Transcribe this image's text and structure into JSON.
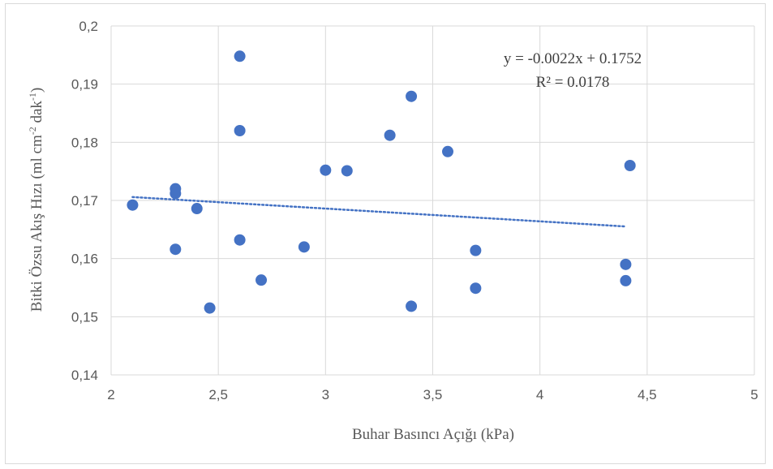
{
  "chart_data": {
    "type": "scatter",
    "xlabel": "Buhar Basıncı Açığı (kPa)",
    "ylabel_parts": [
      "Bitki Özsu Akış Hızı (ml cm",
      "-2",
      " dak",
      "-1",
      ")"
    ],
    "xlim": [
      2,
      5
    ],
    "ylim": [
      0.14,
      0.2
    ],
    "x_ticks": [
      2,
      2.5,
      3,
      3.5,
      4,
      4.5,
      5
    ],
    "x_tick_labels": [
      "2",
      "2,5",
      "3",
      "3,5",
      "4",
      "4,5",
      "5"
    ],
    "y_ticks": [
      0.14,
      0.15,
      0.16,
      0.17,
      0.18,
      0.19,
      0.2
    ],
    "y_tick_labels": [
      "0,14",
      "0,15",
      "0,16",
      "0,17",
      "0,18",
      "0,19",
      "0,2"
    ],
    "grid": true,
    "marker_color": "#4472c4",
    "trendline": {
      "type": "linear",
      "slope": -0.0022,
      "intercept": 0.1752,
      "x_range": [
        2.1,
        4.4
      ],
      "color": "#4472c4",
      "equation_text": "y = -0.0022x + 0.1752",
      "r2_text": "R² = 0.0178"
    },
    "points": [
      {
        "x": 2.1,
        "y": 0.1692
      },
      {
        "x": 2.3,
        "y": 0.172
      },
      {
        "x": 2.3,
        "y": 0.1712
      },
      {
        "x": 2.3,
        "y": 0.1616
      },
      {
        "x": 2.4,
        "y": 0.1686
      },
      {
        "x": 2.46,
        "y": 0.1515
      },
      {
        "x": 2.6,
        "y": 0.1948
      },
      {
        "x": 2.6,
        "y": 0.182
      },
      {
        "x": 2.6,
        "y": 0.1632
      },
      {
        "x": 2.7,
        "y": 0.1563
      },
      {
        "x": 2.9,
        "y": 0.162
      },
      {
        "x": 3.0,
        "y": 0.1752
      },
      {
        "x": 3.1,
        "y": 0.1751
      },
      {
        "x": 3.3,
        "y": 0.1812
      },
      {
        "x": 3.4,
        "y": 0.1879
      },
      {
        "x": 3.4,
        "y": 0.1518
      },
      {
        "x": 3.57,
        "y": 0.1784
      },
      {
        "x": 3.7,
        "y": 0.1614
      },
      {
        "x": 3.7,
        "y": 0.1549
      },
      {
        "x": 4.4,
        "y": 0.159
      },
      {
        "x": 4.4,
        "y": 0.1562
      },
      {
        "x": 4.42,
        "y": 0.176
      }
    ]
  }
}
